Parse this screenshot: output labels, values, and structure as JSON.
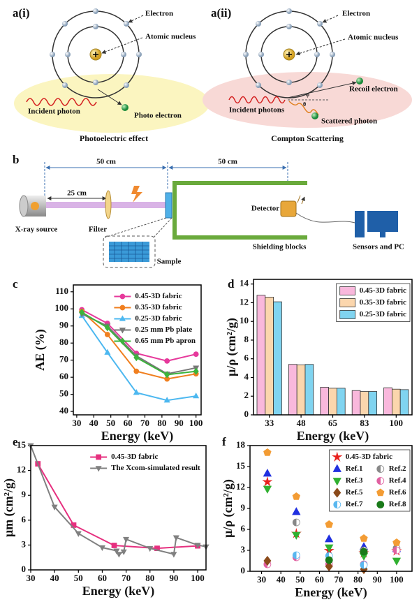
{
  "figure": {
    "a_i": {
      "label": "a(i)",
      "electron": "Electron",
      "nucleus": "Atomic nucleus",
      "photon": "Incident photon",
      "photo_electron": "Photo electron",
      "caption": "Photoelectric effect"
    },
    "a_ii": {
      "label": "a(ii)",
      "electron": "Electron",
      "nucleus": "Atomic nucleus",
      "recoil": "Recoil electron",
      "photons": "Incident photons",
      "scattered": "Scattered photon",
      "angle_phi": "φ",
      "angle_theta": "θ",
      "caption": "Compton Scattering"
    },
    "b": {
      "label": "b",
      "dist_1": "50 cm",
      "dist_2": "50 cm",
      "dist_3": "25 cm",
      "source": "X-ray source",
      "filter": "Filter",
      "sample": "Sample",
      "detector": "Detector",
      "shield": "Shielding blocks",
      "pc": "Sensors and PC"
    },
    "panel_labels": [
      "c",
      "d",
      "e",
      "f"
    ]
  },
  "chart_data": [
    {
      "type": "line",
      "x_label": "Energy (keV)",
      "y_label": "AE (%)",
      "x": [
        33,
        48,
        65,
        83,
        100
      ],
      "xlim": [
        28,
        103
      ],
      "xticks": [
        30,
        40,
        50,
        60,
        70,
        80,
        90,
        100
      ],
      "ylim": [
        38,
        114
      ],
      "yticks": [
        40,
        50,
        60,
        70,
        80,
        90,
        100,
        110
      ],
      "legend": "upper right",
      "legend_frame": false,
      "series": [
        {
          "name": "0.45-3D fabric",
          "color": "#e6399b",
          "marker": "circle",
          "values": [
            99.5,
            91.5,
            74,
            69.5,
            73.5
          ]
        },
        {
          "name": "0.35-3D fabric",
          "color": "#f07f1f",
          "marker": "circle",
          "values": [
            98.5,
            85,
            63.5,
            59,
            62
          ]
        },
        {
          "name": "0.25-3D fabric",
          "color": "#4db8f0",
          "marker": "triangle",
          "values": [
            96,
            74.5,
            51,
            46.5,
            49
          ]
        },
        {
          "name": "0.25 mm Pb plate",
          "color": "#777777",
          "marker": "triangle-down",
          "values": [
            97,
            90,
            72.5,
            62,
            65.5
          ]
        },
        {
          "name": "0.65 mm Pb apron",
          "color": "#3cb43c",
          "marker": "diamond",
          "values": [
            98,
            89,
            71.5,
            61.5,
            63.5
          ]
        }
      ]
    },
    {
      "type": "bar",
      "x_label": "Energy (keV)",
      "y_label": "μ/ρ (cm²/g)",
      "categories": [
        "33",
        "48",
        "65",
        "83",
        "100"
      ],
      "ylim": [
        0,
        14.5
      ],
      "yticks": [
        0,
        2,
        4,
        6,
        8,
        10,
        12,
        14
      ],
      "legend": "upper right",
      "legend_frame": true,
      "series": [
        {
          "name": "0.45-3D fabric",
          "color": "#f9b8dc",
          "values": [
            12.8,
            5.4,
            2.95,
            2.6,
            2.9
          ]
        },
        {
          "name": "0.35-3D fabric",
          "color": "#fbd6ad",
          "values": [
            12.6,
            5.35,
            2.85,
            2.5,
            2.75
          ]
        },
        {
          "name": "0.25-3D fabric",
          "color": "#80d4f0",
          "values": [
            12.1,
            5.4,
            2.85,
            2.5,
            2.7
          ]
        }
      ]
    },
    {
      "type": "line",
      "x_label": "Energy (keV)",
      "y_label": "μm (cm²/g)",
      "xlim": [
        30,
        103.5
      ],
      "xticks": [
        30,
        40,
        50,
        60,
        70,
        80,
        90,
        100
      ],
      "ylim": [
        0,
        15
      ],
      "yticks": [
        0,
        3,
        6,
        9,
        12,
        15
      ],
      "legend": "upper right",
      "legend_frame": false,
      "series": [
        {
          "name": "0.45-3D fabric",
          "color": "#e6307f",
          "marker": "square",
          "x": [
            33,
            48,
            65,
            83,
            100
          ],
          "values": [
            12.8,
            5.4,
            2.95,
            2.6,
            2.9
          ]
        },
        {
          "name": "The Xcom-simulated result",
          "color": "#808080",
          "marker": "triangle-down",
          "x": [
            30,
            40,
            50,
            60,
            66,
            67,
            69,
            70,
            80,
            90,
            91,
            100,
            103.5
          ],
          "values": [
            15,
            7.6,
            4.4,
            2.7,
            2.3,
            1.9,
            2.2,
            3.7,
            2.6,
            1.9,
            3.9,
            3.0,
            2.8
          ]
        }
      ]
    },
    {
      "type": "scatter",
      "x_label": "Energy (keV)",
      "y_label": "μ/ρ (cm²/g)",
      "xlim": [
        24,
        108
      ],
      "xticks": [
        30,
        40,
        50,
        60,
        70,
        80,
        90,
        100
      ],
      "ylim": [
        0,
        18
      ],
      "yticks": [
        0,
        3,
        6,
        9,
        12,
        15,
        18
      ],
      "legend": "upper right",
      "legend_frame": true,
      "series": [
        {
          "name": "0.45-3D fabric",
          "color": "#e8201e",
          "marker": "star",
          "x": [
            33,
            48,
            65,
            83,
            100
          ],
          "values": [
            12.8,
            5.4,
            2.95,
            2.6,
            2.9
          ]
        },
        {
          "name": "Ref.1",
          "color": "#2030e0",
          "marker": "triangle",
          "x": [
            33,
            48,
            65,
            83,
            100
          ],
          "values": [
            14,
            8.5,
            4.6,
            3.5,
            3.2
          ]
        },
        {
          "name": "Ref.2",
          "color": "#888888",
          "marker": "half-circle",
          "x": [
            48,
            83,
            100
          ],
          "values": [
            7,
            3,
            3.3
          ]
        },
        {
          "name": "Ref.3",
          "color": "#30b030",
          "marker": "triangle-down",
          "x": [
            33,
            48,
            65,
            83,
            100
          ],
          "values": [
            11.8,
            5.2,
            3.4,
            2.2,
            1.5
          ]
        },
        {
          "name": "Ref.4",
          "color": "#e060a0",
          "marker": "half-circle",
          "x": [
            33,
            48,
            65,
            83,
            100
          ],
          "values": [
            1,
            2,
            1,
            1,
            3
          ]
        },
        {
          "name": "Ref.5",
          "color": "#8b4a1a",
          "marker": "diamond",
          "x": [
            33,
            65,
            83
          ],
          "values": [
            1.5,
            0.7,
            0.3
          ]
        },
        {
          "name": "Ref.6",
          "color": "#f39c34",
          "marker": "pentagon",
          "x": [
            33,
            48,
            65,
            83,
            100
          ],
          "values": [
            17,
            10.7,
            6.7,
            4.7,
            4.1
          ]
        },
        {
          "name": "Ref.7",
          "color": "#5ab8f0",
          "marker": "half-circle",
          "x": [
            48,
            65,
            83
          ],
          "values": [
            2.3,
            2.2,
            0.9
          ]
        },
        {
          "name": "Ref.8",
          "color": "#1a7a1a",
          "marker": "circle",
          "x": [
            65,
            83
          ],
          "values": [
            1.6,
            2.8
          ]
        }
      ]
    }
  ]
}
